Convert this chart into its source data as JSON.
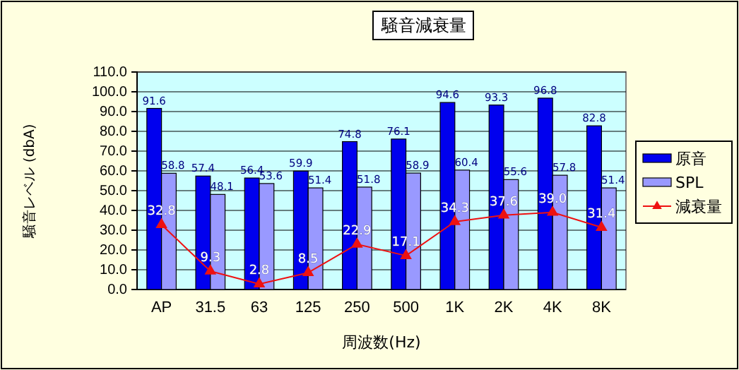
{
  "chart_data": {
    "type": "bar",
    "title": "騒音減衰量",
    "xlabel": "周波数(Hz)",
    "ylabel": "騒音レベル (dbA)",
    "categories": [
      "AP",
      "31.5",
      "63",
      "125",
      "250",
      "500",
      "1K",
      "2K",
      "4K",
      "8K"
    ],
    "series": [
      {
        "name": "原音",
        "color": "#0000ee",
        "values": [
          91.6,
          57.4,
          56.4,
          59.9,
          74.8,
          76.1,
          94.6,
          93.3,
          96.8,
          82.8
        ],
        "value_labels": [
          "91.6",
          "57.4",
          "56.4",
          "59.9",
          "74.8",
          "76.1",
          "94.6",
          "93.3",
          "96.8",
          "82.8"
        ]
      },
      {
        "name": "SPL",
        "color": "#9999ff",
        "values": [
          58.8,
          48.1,
          53.6,
          51.4,
          51.8,
          58.9,
          60.4,
          55.6,
          57.8,
          51.4
        ],
        "value_labels": [
          "58.8",
          "48.1",
          "53.6",
          "51.4",
          "51.8",
          "58.9",
          "60.4",
          "55.6",
          "57.8",
          "51.4"
        ]
      },
      {
        "name": "減衰量",
        "type": "line",
        "color": "#ee1111",
        "values": [
          32.8,
          9.3,
          2.8,
          8.5,
          22.9,
          17.1,
          34.3,
          37.6,
          39.0,
          31.4
        ],
        "value_labels": [
          "32.8",
          "9.3",
          "2.8",
          "8.5",
          "22.9",
          "17.1",
          "34.3",
          "37.6",
          "39.0",
          "31.4"
        ]
      }
    ],
    "ylim": [
      0,
      110
    ],
    "yticks": [
      {
        "value": 0,
        "label": "0.0"
      },
      {
        "value": 10,
        "label": "10.0"
      },
      {
        "value": 20,
        "label": "20.0"
      },
      {
        "value": 30,
        "label": "30.0"
      },
      {
        "value": 40,
        "label": "40.0"
      },
      {
        "value": 50,
        "label": "50.0"
      },
      {
        "value": 60,
        "label": "60.0"
      },
      {
        "value": 70,
        "label": "70.0"
      },
      {
        "value": 80,
        "label": "80.0"
      },
      {
        "value": 90,
        "label": "90.0"
      },
      {
        "value": 100,
        "label": "100.0"
      },
      {
        "value": 110,
        "label": "110.0"
      }
    ],
    "grid": "y",
    "legend": "right",
    "marker": "triangle"
  }
}
